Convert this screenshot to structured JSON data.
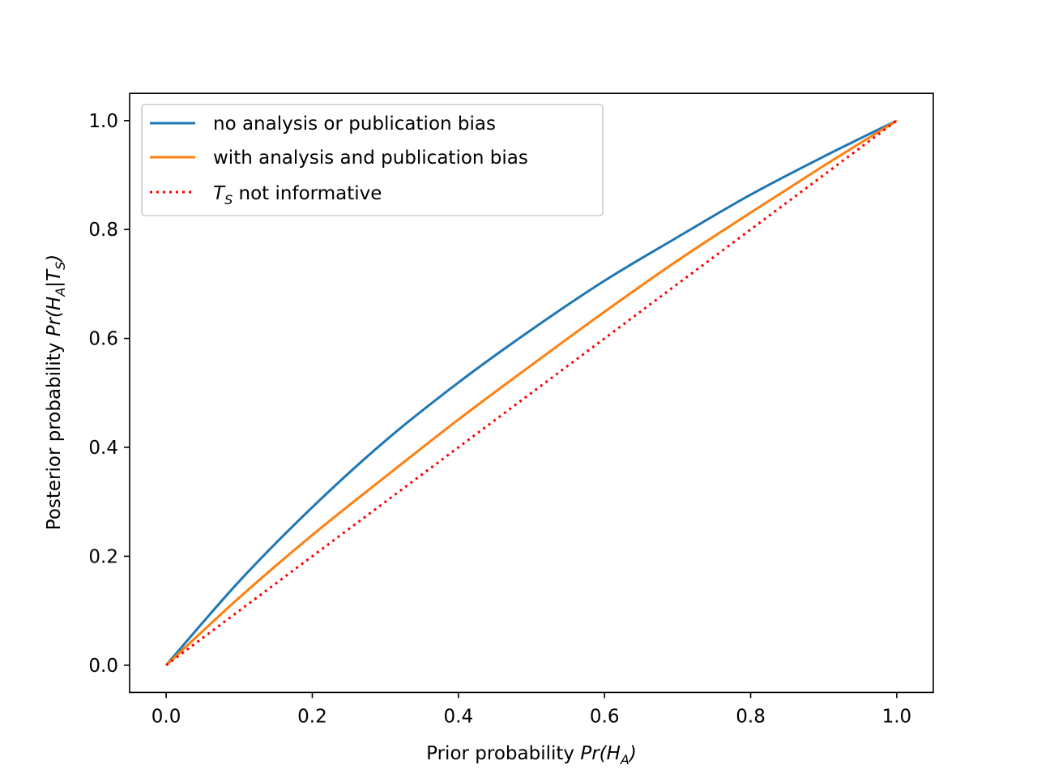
{
  "chart_data": {
    "type": "line",
    "title": "",
    "xlabel": {
      "text": "Prior probability ",
      "math_base": "Pr(H",
      "math_sub": "A",
      "math_close": ")"
    },
    "ylabel": {
      "text": "Posterior probability ",
      "math_base": "Pr(H",
      "math_sub": "A",
      "math_mid": "|T",
      "math_sub2": "S",
      "math_close": ")"
    },
    "xlim": [
      -0.05,
      1.05
    ],
    "ylim": [
      -0.05,
      1.05
    ],
    "xticks": [
      0.0,
      0.2,
      0.4,
      0.6,
      0.8,
      1.0
    ],
    "xtick_labels": [
      "0.0",
      "0.2",
      "0.4",
      "0.6",
      "0.8",
      "1.0"
    ],
    "yticks": [
      0.0,
      0.2,
      0.4,
      0.6,
      0.8,
      1.0
    ],
    "ytick_labels": [
      "0.0",
      "0.2",
      "0.4",
      "0.6",
      "0.8",
      "1.0"
    ],
    "grid": false,
    "legend_position": "top-left",
    "x": [
      0.0,
      0.1,
      0.2,
      0.3,
      0.4,
      0.5,
      0.6,
      0.7,
      0.8,
      0.9,
      1.0
    ],
    "series": [
      {
        "name": "no analysis or publication bias",
        "color": "#1f77b4",
        "style": "solid",
        "values": [
          0.0,
          0.154,
          0.29,
          0.412,
          0.519,
          0.616,
          0.706,
          0.786,
          0.864,
          0.934,
          1.0
        ]
      },
      {
        "name": "with analysis and publication bias",
        "color": "#ff7f0e",
        "style": "solid",
        "values": [
          0.0,
          0.124,
          0.239,
          0.346,
          0.451,
          0.551,
          0.649,
          0.743,
          0.831,
          0.917,
          1.0
        ]
      },
      {
        "name_math_base": "T",
        "name_math_sub": "S",
        "name_rest": " not informative",
        "color": "#ff0000",
        "style": "dotted",
        "values": [
          0.0,
          0.1,
          0.2,
          0.3,
          0.4,
          0.5,
          0.6,
          0.7,
          0.8,
          0.9,
          1.0
        ]
      }
    ]
  }
}
